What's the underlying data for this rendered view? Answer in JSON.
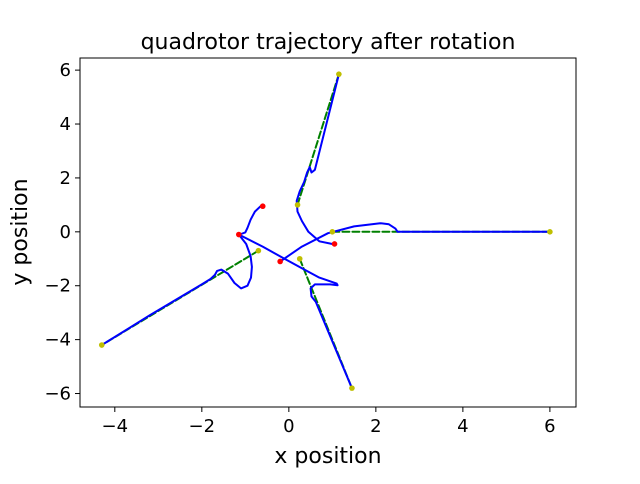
{
  "chart_data": {
    "type": "line",
    "title": "quadrotor trajectory after rotation",
    "xlabel": "x position",
    "ylabel": "y position",
    "xlim": [
      -4.8,
      6.6
    ],
    "ylim": [
      -6.5,
      6.45
    ],
    "xticks": [
      -4,
      -2,
      0,
      2,
      4,
      6
    ],
    "yticks": [
      -6,
      -4,
      -2,
      0,
      2,
      4,
      6
    ],
    "grid": false,
    "legend": "none",
    "colors": {
      "trajectory": "#0000ff",
      "reference": "#008000",
      "start": "#ff0000",
      "goal": "#bfbf00"
    },
    "series": [
      {
        "kind": "reference",
        "x": [
          -0.7,
          -4.3
        ],
        "y": [
          -0.7,
          -4.2
        ]
      },
      {
        "kind": "trajectory",
        "x": [
          -1.15,
          -0.98,
          -0.88,
          -0.85,
          -0.87,
          -0.95,
          -1.1,
          -1.25,
          -1.4,
          -1.55,
          -1.65,
          -1.7,
          -1.8,
          -2.0,
          -3.2,
          -4.3
        ],
        "y": [
          -0.1,
          -0.45,
          -0.9,
          -1.3,
          -1.7,
          -2.0,
          -2.1,
          -1.9,
          -1.55,
          -1.4,
          -1.45,
          -1.6,
          -1.75,
          -1.95,
          -3.1,
          -4.2
        ]
      },
      {
        "kind": "reference",
        "x": [
          1.0,
          6.0
        ],
        "y": [
          0.0,
          0.0
        ]
      },
      {
        "kind": "trajectory",
        "x": [
          -0.2,
          0.3,
          0.9,
          1.5,
          2.1,
          2.3,
          2.45,
          2.5,
          4.0,
          6.0
        ],
        "y": [
          -1.1,
          -0.55,
          -0.05,
          0.2,
          0.32,
          0.28,
          0.12,
          0.0,
          0.0,
          0.0
        ]
      },
      {
        "kind": "reference",
        "x": [
          0.2,
          1.15
        ],
        "y": [
          1.0,
          5.85
        ]
      },
      {
        "kind": "trajectory",
        "x": [
          1.0,
          0.7,
          0.45,
          0.3,
          0.2,
          0.18,
          0.25,
          0.35,
          0.42,
          0.48,
          0.52,
          0.6,
          1.15
        ],
        "y": [
          -0.45,
          -0.35,
          0.0,
          0.4,
          0.75,
          1.15,
          1.5,
          1.85,
          2.2,
          2.4,
          2.2,
          2.3,
          5.85
        ]
      },
      {
        "kind": "reference",
        "x": [
          0.25,
          1.45
        ],
        "y": [
          -1.0,
          -5.8
        ]
      },
      {
        "kind": "trajectory",
        "x": [
          -1.15,
          -0.6,
          -0.1,
          0.3,
          0.7,
          1.1,
          1.12,
          0.95,
          0.6,
          0.5,
          0.52,
          0.62,
          1.45
        ],
        "y": [
          -0.1,
          -0.55,
          -1.0,
          -1.35,
          -1.7,
          -1.92,
          -1.98,
          -1.95,
          -1.95,
          -2.1,
          -2.4,
          -2.6,
          -5.8
        ]
      },
      {
        "kind": "trajectory",
        "x": [
          -0.65,
          -0.78,
          -0.88,
          -0.95,
          -1.0,
          -1.1,
          -1.15
        ],
        "y": [
          0.95,
          0.75,
          0.45,
          0.15,
          -0.02,
          -0.08,
          -0.1
        ]
      }
    ],
    "start_points": {
      "x": [
        -0.6,
        -1.15,
        -0.2,
        1.05
      ],
      "y": [
        0.95,
        -0.1,
        -1.1,
        -0.45
      ]
    },
    "goal_points": {
      "x": [
        -4.3,
        -0.7,
        0.25,
        1.45,
        0.2,
        1.15,
        1.0,
        6.0
      ],
      "y": [
        -4.2,
        -0.7,
        -1.0,
        -5.8,
        1.0,
        5.85,
        0.0,
        0.0
      ]
    }
  }
}
